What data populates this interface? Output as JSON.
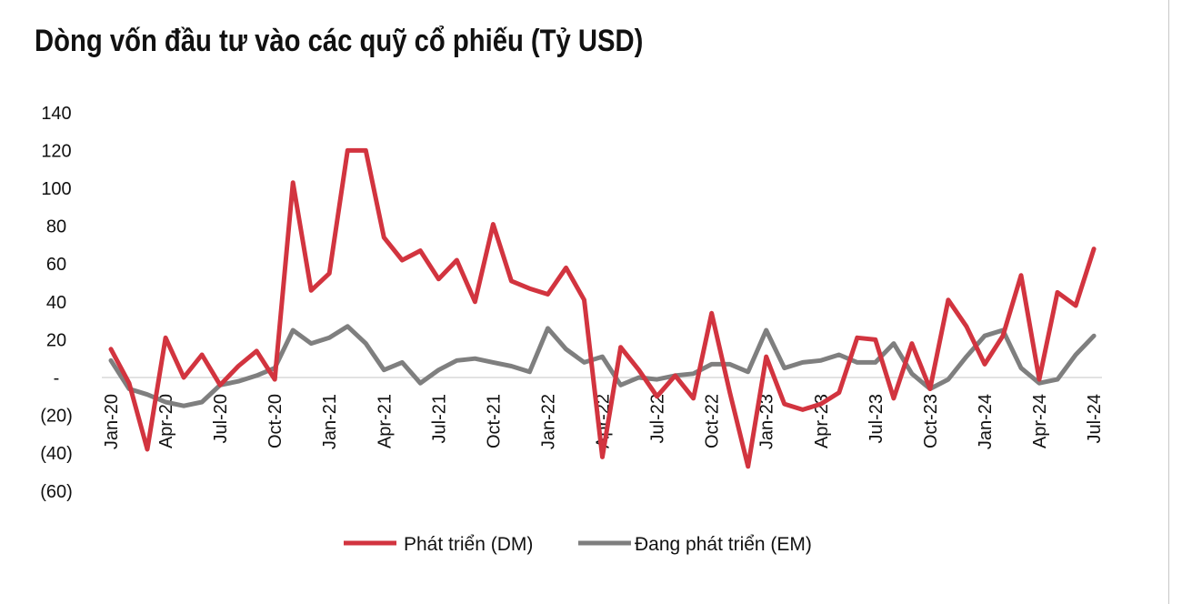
{
  "title": "Dòng vốn đầu tư vào các quỹ cổ phiếu (Tỷ USD)",
  "colors": {
    "dm": "#d2343f",
    "em": "#7f7f7f",
    "axis": "#d9d9d9"
  },
  "chart_data": {
    "type": "line",
    "title": "Dòng vốn đầu tư vào các quỹ cổ phiếu (Tỷ USD)",
    "xlabel": "",
    "ylabel": "",
    "ylim": [
      -60,
      140
    ],
    "yticks": [
      140,
      120,
      100,
      80,
      60,
      40,
      20,
      0,
      -20,
      -40,
      -60
    ],
    "ytick_labels": [
      "140",
      "120",
      "100",
      "80",
      "60",
      "40",
      "20",
      "-",
      "(20)",
      "(40)",
      "(60)"
    ],
    "xtick_labels": [
      "Jan-20",
      "Apr-20",
      "Jul-20",
      "Oct-20",
      "Jan-21",
      "Apr-21",
      "Jul-21",
      "Oct-21",
      "Jan-22",
      "Apr-22",
      "Jul-22",
      "Oct-22",
      "Jan-23",
      "Apr-23",
      "Jul-23",
      "Oct-23",
      "Jan-24",
      "Apr-24",
      "Jul-24"
    ],
    "xtick_every": 3,
    "legend_position": "bottom",
    "grid": false,
    "series": [
      {
        "name": "Phát triển (DM)",
        "values": [
          15,
          -3,
          -38,
          21,
          0,
          12,
          -4,
          6,
          14,
          -1,
          103,
          46,
          55,
          120,
          120,
          74,
          62,
          67,
          52,
          62,
          40,
          81,
          51,
          47,
          44,
          58,
          41,
          -42,
          16,
          4,
          -10,
          1,
          -11,
          34,
          -8,
          -47,
          11,
          -14,
          -17,
          -14,
          -8,
          21,
          20,
          -11,
          18,
          -6,
          41,
          27,
          7,
          22,
          54,
          -1,
          45,
          38,
          68
        ]
      },
      {
        "name": "Đang phát triển (EM)",
        "values": [
          9,
          -6,
          -9,
          -13,
          -15,
          -13,
          -4,
          -2,
          1,
          5,
          25,
          18,
          21,
          27,
          18,
          4,
          8,
          -3,
          4,
          9,
          10,
          8,
          6,
          3,
          26,
          15,
          8,
          11,
          -4,
          0,
          -1,
          1,
          2,
          7,
          7,
          3,
          25,
          5,
          8,
          9,
          12,
          8,
          8,
          18,
          2,
          -6,
          -1,
          11,
          22,
          25,
          5,
          -3,
          -1,
          12,
          22
        ]
      }
    ]
  }
}
